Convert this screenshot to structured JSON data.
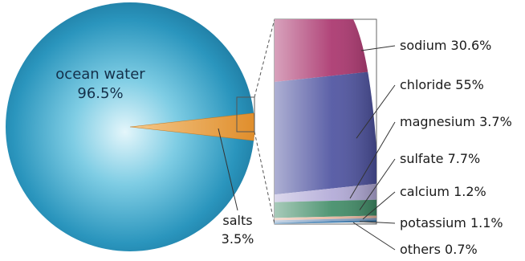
{
  "chart_data": [
    {
      "type": "pie",
      "slices": [
        {
          "label": "ocean water",
          "value_text": "96.5%",
          "value": 96.5,
          "color": "#2b93b8"
        },
        {
          "label": "salts",
          "value_text": "3.5%",
          "value": 3.5,
          "color": "#e39a3c"
        }
      ]
    },
    {
      "type": "bar",
      "stacked": true,
      "segments": [
        {
          "label": "sodium 30.6%",
          "value": 30.6,
          "color": "#a8306a"
        },
        {
          "label": "chloride 55%",
          "value": 55,
          "color": "#4a4f9e"
        },
        {
          "label": "magnesium 3.7%",
          "value": 3.7,
          "color": "#b0a8d6"
        },
        {
          "label": "sulfate 7.7%",
          "value": 7.7,
          "color": "#3d8a64"
        },
        {
          "label": "calcium 1.2%",
          "value": 1.2,
          "color": "#e7b49c"
        },
        {
          "label": "potassium 1.1%",
          "value": 1.1,
          "color": "#7f9fc4"
        },
        {
          "label": "others 0.7%",
          "value": 0.7,
          "color": "#2a6fa8"
        }
      ]
    }
  ]
}
